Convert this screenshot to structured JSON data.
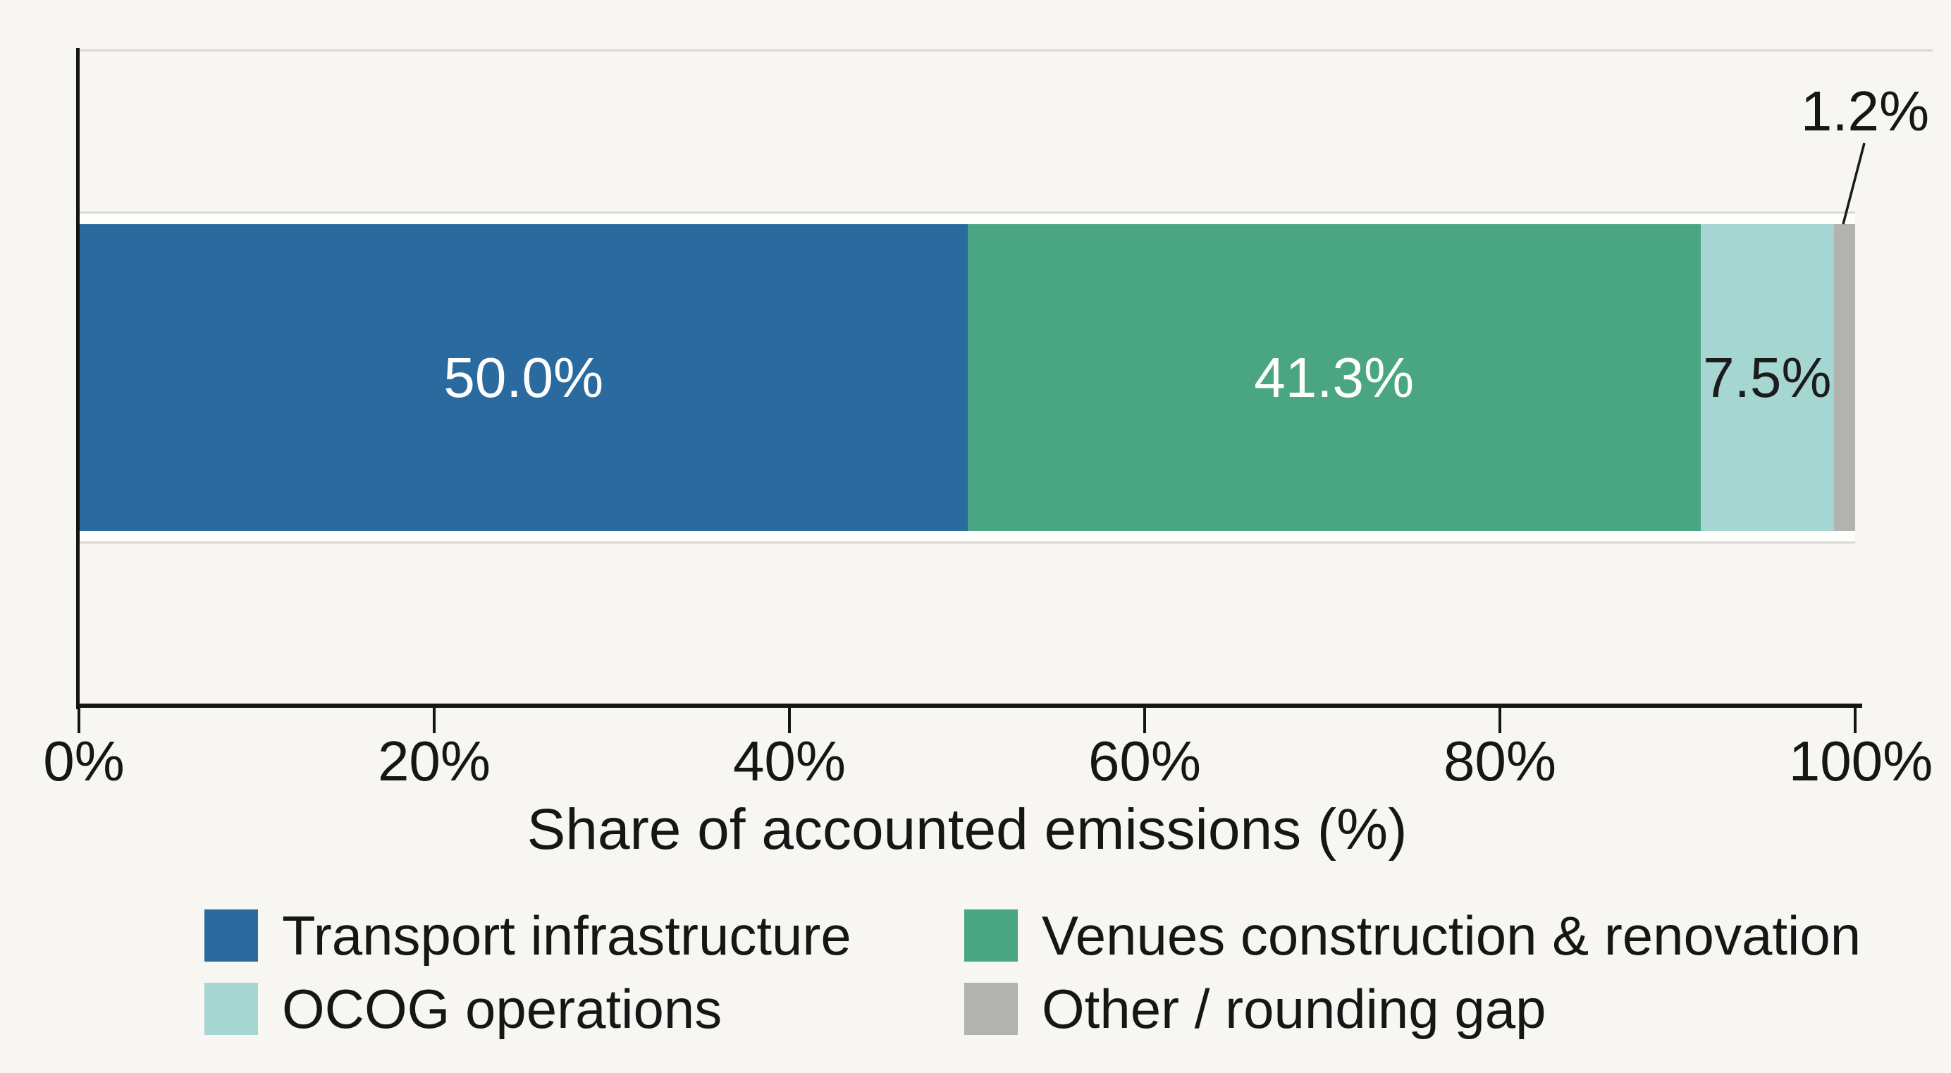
{
  "figure": {
    "background": "#f7f6f3",
    "annotation_label": "1.2%"
  },
  "axis": {
    "xlabel": "Share of accounted emissions (%)",
    "ticks": [
      "0%",
      "20%",
      "40%",
      "60%",
      "80%",
      "100%"
    ]
  },
  "legend": {
    "items": [
      {
        "label": "Transport infrastructure",
        "color": "#2a6a9f"
      },
      {
        "label": "Venues construction & renovation",
        "color": "#4aa682"
      },
      {
        "label": "OCOG operations",
        "color": "#a6d6d2"
      },
      {
        "label": "Other / rounding gap",
        "color": "#b2b2af"
      }
    ]
  },
  "chart_data": {
    "type": "bar",
    "orientation": "horizontal",
    "stacked": true,
    "title": "",
    "xlabel": "Share of accounted emissions (%)",
    "ylabel": "",
    "xlim": [
      0,
      100
    ],
    "x_tick_labels": [
      "0%",
      "20%",
      "40%",
      "60%",
      "80%",
      "100%"
    ],
    "grid": "light horizontal lines at band edges",
    "legend_position": "bottom, 2 columns",
    "series": [
      {
        "name": "Transport infrastructure",
        "value": 50.0,
        "display_label": "50.0%",
        "color": "#2a6a9f",
        "label_color": "#ffffff",
        "label_position": "inside"
      },
      {
        "name": "Venues construction & renovation",
        "value": 41.3,
        "display_label": "41.3%",
        "color": "#4aa682",
        "label_color": "#ffffff",
        "label_position": "inside"
      },
      {
        "name": "OCOG operations",
        "value": 7.5,
        "display_label": "7.5%",
        "color": "#a6d6d2",
        "label_color": "#1c1c1c",
        "label_position": "inside"
      },
      {
        "name": "Other / rounding gap",
        "value": 1.2,
        "display_label": "1.2%",
        "color": "#b2b2af",
        "label_color": "#1c1c1c",
        "label_position": "outside-annotation"
      }
    ]
  }
}
